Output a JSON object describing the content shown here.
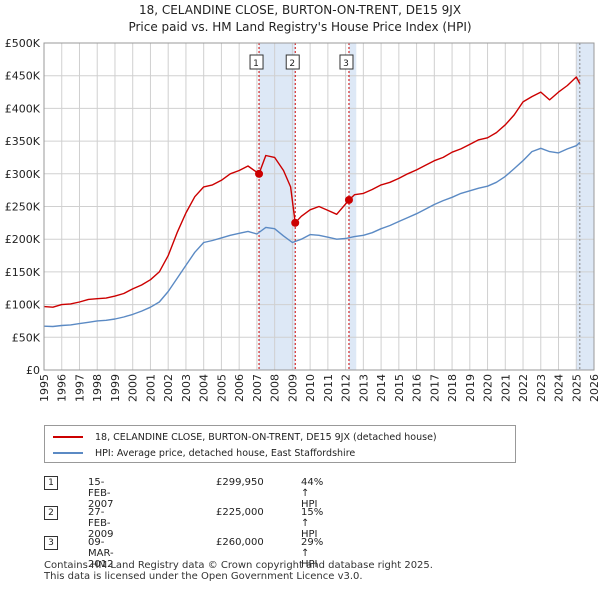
{
  "title": {
    "line1": "18, CELANDINE CLOSE, BURTON-ON-TRENT, DE15 9JX",
    "line2": "Price paid vs. HM Land Registry's House Price Index (HPI)"
  },
  "legend": {
    "property_label": "18, CELANDINE CLOSE, BURTON-ON-TRENT, DE15 9JX (detached house)",
    "hpi_label": "HPI: Average price, detached house, East Staffordshire"
  },
  "colors": {
    "property": "#cc0000",
    "hpi": "#5b8ac4",
    "shade": "#dde8f6",
    "grid": "#d0d0d0"
  },
  "sales": [
    {
      "id": "1",
      "date": "15-FEB-2007",
      "price": "£299,950",
      "hpi_change": "44% ↑ HPI"
    },
    {
      "id": "2",
      "date": "27-FEB-2009",
      "price": "£225,000",
      "hpi_change": "15% ↑ HPI"
    },
    {
      "id": "3",
      "date": "09-MAR-2012",
      "price": "£260,000",
      "hpi_change": "29% ↑ HPI"
    }
  ],
  "footer": {
    "line1": "Contains HM Land Registry data © Crown copyright and database right 2025.",
    "line2": "This data is licensed under the Open Government Licence v3.0."
  },
  "chart_data": {
    "type": "line",
    "title": "Price paid vs. HM Land Registry's House Price Index (HPI)",
    "xlim": [
      1995,
      2026
    ],
    "ylim": [
      0,
      500000
    ],
    "y_ticks": [
      0,
      50000,
      100000,
      150000,
      200000,
      250000,
      300000,
      350000,
      400000,
      450000,
      500000
    ],
    "y_tick_labels": [
      "£0",
      "£50K",
      "£100K",
      "£150K",
      "£200K",
      "£250K",
      "£300K",
      "£350K",
      "£400K",
      "£450K",
      "£500K"
    ],
    "x_ticks": [
      1995,
      1996,
      1997,
      1998,
      1999,
      2000,
      2001,
      2002,
      2003,
      2004,
      2005,
      2006,
      2007,
      2008,
      2009,
      2010,
      2011,
      2012,
      2013,
      2014,
      2015,
      2016,
      2017,
      2018,
      2019,
      2020,
      2021,
      2022,
      2023,
      2024,
      2025,
      2026
    ],
    "grid": true,
    "shaded_regions": [
      [
        2007.12,
        2009.16
      ],
      [
        2012.19,
        2012.6
      ],
      [
        2025.0,
        2026.0
      ]
    ],
    "series": [
      {
        "name": "18, CELANDINE CLOSE, BURTON-ON-TRENT, DE15 9JX (detached house)",
        "x": [
          1995,
          1995.5,
          1996,
          1996.5,
          1997,
          1997.5,
          1998,
          1998.5,
          1999,
          1999.5,
          2000,
          2000.5,
          2001,
          2001.5,
          2002,
          2002.5,
          2003,
          2003.5,
          2004,
          2004.5,
          2005,
          2005.5,
          2006,
          2006.5,
          2007.12,
          2007.5,
          2008,
          2008.5,
          2008.9,
          2009.16,
          2009.5,
          2010,
          2010.5,
          2011,
          2011.5,
          2012.19,
          2012.5,
          2013,
          2013.5,
          2014,
          2014.5,
          2015,
          2015.5,
          2016,
          2016.5,
          2017,
          2017.5,
          2018,
          2018.5,
          2019,
          2019.5,
          2020,
          2020.5,
          2021,
          2021.5,
          2022,
          2022.5,
          2023,
          2023.5,
          2024,
          2024.5,
          2025,
          2025.2
        ],
        "y": [
          97000,
          96000,
          100000,
          101000,
          104000,
          108000,
          109000,
          110000,
          113000,
          117000,
          124000,
          130000,
          138000,
          150000,
          175000,
          210000,
          240000,
          265000,
          280000,
          283000,
          290000,
          300000,
          305000,
          312000,
          299950,
          328000,
          325000,
          305000,
          280000,
          225000,
          235000,
          245000,
          250000,
          244000,
          238000,
          260000,
          268000,
          270000,
          276000,
          283000,
          287000,
          293000,
          300000,
          306000,
          313000,
          320000,
          325000,
          333000,
          338000,
          345000,
          352000,
          355000,
          363000,
          375000,
          390000,
          410000,
          418000,
          425000,
          413000,
          425000,
          435000,
          448000,
          438000
        ]
      },
      {
        "name": "HPI: Average price, detached house, East Staffordshire",
        "x": [
          1995,
          1995.5,
          1996,
          1996.5,
          1997,
          1997.5,
          1998,
          1998.5,
          1999,
          1999.5,
          2000,
          2000.5,
          2001,
          2001.5,
          2002,
          2002.5,
          2003,
          2003.5,
          2004,
          2004.5,
          2005,
          2005.5,
          2006,
          2006.5,
          2007,
          2007.5,
          2008,
          2008.5,
          2009,
          2009.5,
          2010,
          2010.5,
          2011,
          2011.5,
          2012,
          2012.5,
          2013,
          2013.5,
          2014,
          2014.5,
          2015,
          2015.5,
          2016,
          2016.5,
          2017,
          2017.5,
          2018,
          2018.5,
          2019,
          2019.5,
          2020,
          2020.5,
          2021,
          2021.5,
          2022,
          2022.5,
          2023,
          2023.5,
          2024,
          2024.5,
          2025,
          2025.2
        ],
        "y": [
          67000,
          66500,
          68000,
          69000,
          71000,
          73000,
          75000,
          76000,
          78000,
          81000,
          85000,
          90000,
          96000,
          104000,
          120000,
          140000,
          160000,
          180000,
          195000,
          198000,
          202000,
          206000,
          209000,
          212000,
          208000,
          218000,
          216000,
          205000,
          195000,
          200000,
          207000,
          206000,
          203000,
          200000,
          201000,
          204000,
          206000,
          210000,
          216000,
          221000,
          227000,
          233000,
          239000,
          246000,
          253000,
          259000,
          264000,
          270000,
          274000,
          278000,
          281000,
          287000,
          296000,
          308000,
          320000,
          334000,
          339000,
          334000,
          332000,
          338000,
          343000,
          348000
        ]
      }
    ],
    "markers": [
      {
        "label": "1",
        "x": 2007.12,
        "y": 299950
      },
      {
        "label": "2",
        "x": 2009.16,
        "y": 225000
      },
      {
        "label": "3",
        "x": 2012.19,
        "y": 260000
      }
    ]
  }
}
